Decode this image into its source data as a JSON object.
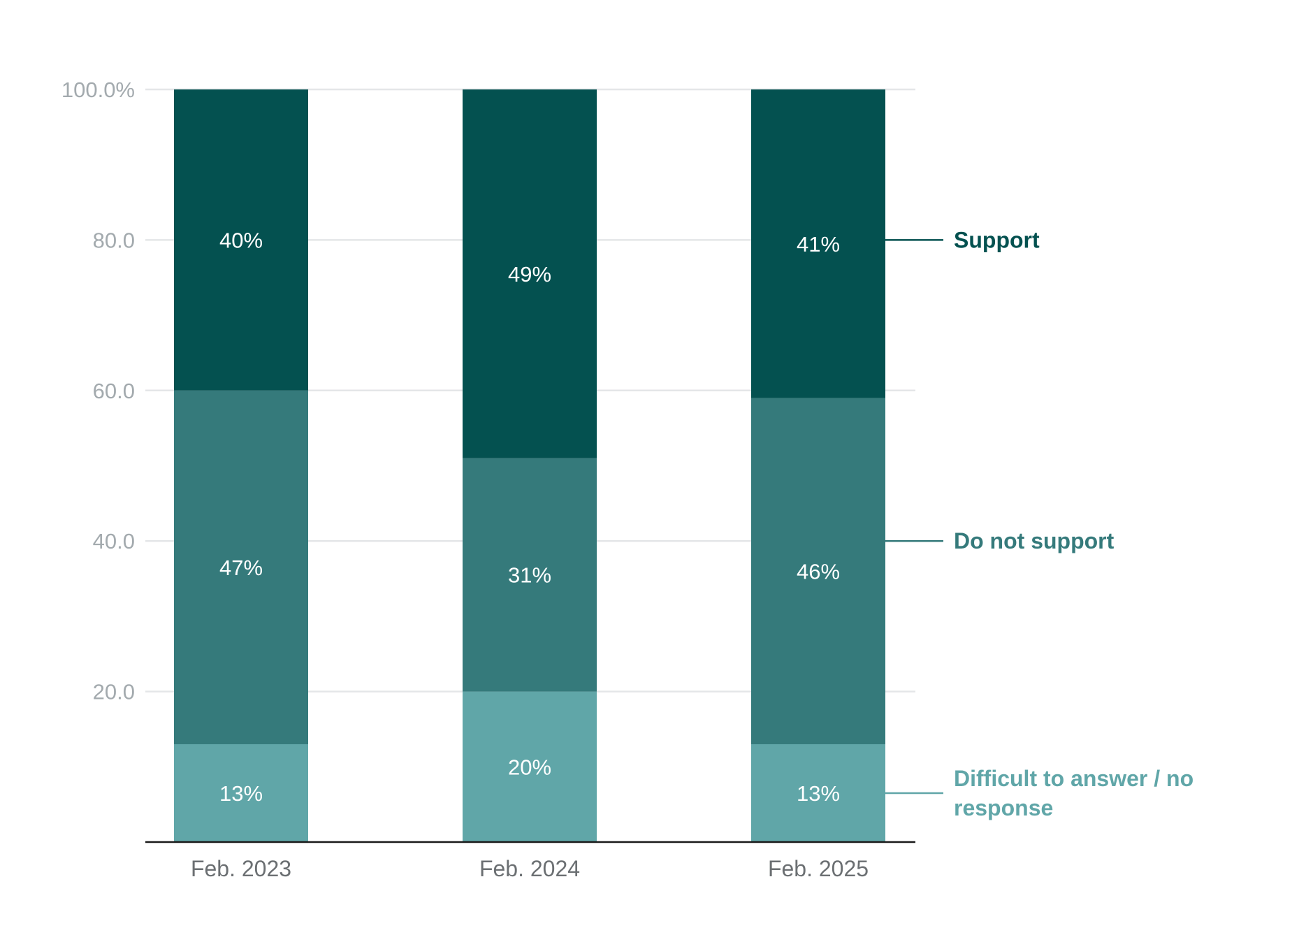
{
  "chart_data": {
    "type": "bar",
    "stacked": true,
    "categories": [
      "Feb. 2023",
      "Feb. 2024",
      "Feb. 2025"
    ],
    "series": [
      {
        "name": "Difficult to answer / no response",
        "values": [
          13,
          20,
          13
        ],
        "labels": [
          "13%",
          "20%",
          "13%"
        ],
        "color": "#60a6a8",
        "label_color": "#60a6a8"
      },
      {
        "name": "Do not support",
        "values": [
          47,
          31,
          46
        ],
        "labels": [
          "47%",
          "31%",
          "46%"
        ],
        "color": "#357a7b",
        "label_color": "#357a7b"
      },
      {
        "name": "Support",
        "values": [
          40,
          49,
          41
        ],
        "labels": [
          "40%",
          "49%",
          "41%"
        ],
        "color": "#045150",
        "label_color": "#045150"
      }
    ],
    "ylim": [
      0,
      100
    ],
    "yticks": [
      {
        "value": 20,
        "label": "20.0"
      },
      {
        "value": 40,
        "label": "40.0"
      },
      {
        "value": 60,
        "label": "60.0"
      },
      {
        "value": 80,
        "label": "80.0"
      },
      {
        "value": 100,
        "label": "100.0%"
      }
    ],
    "grid": true,
    "legend": "right, direct labels",
    "legend_labels": [
      {
        "lines": [
          "Support"
        ],
        "color": "#045150"
      },
      {
        "lines": [
          "Do not support"
        ],
        "color": "#357a7b"
      },
      {
        "lines": [
          "Difficult to answer / no",
          "response"
        ],
        "color": "#60a6a8"
      }
    ],
    "title": "",
    "xlabel": "",
    "ylabel": ""
  }
}
